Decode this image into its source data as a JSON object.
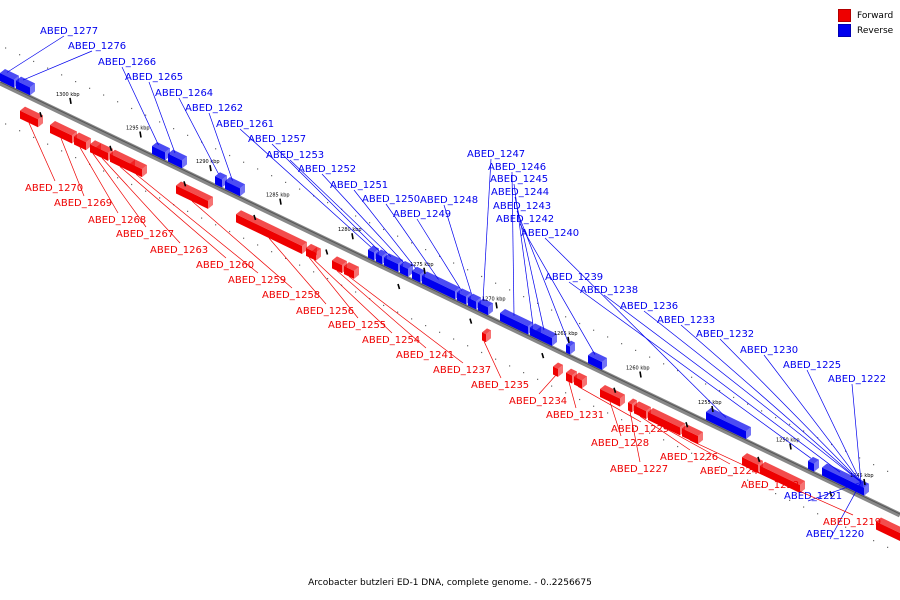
{
  "legend": {
    "forward_label": "Forward",
    "reverse_label": "Reverse",
    "forward_color": "#ee0000",
    "reverse_color": "#0000ee"
  },
  "caption": "Arcobacter butzleri ED-1 DNA, complete genome. - 0..2256675",
  "kbp_marks": [
    "1300 kbp",
    "1295 kbp",
    "1290 kbp",
    "1285 kbp",
    "1280 kbp",
    "1275 kbp",
    "1270 kbp",
    "1265 kbp",
    "1260 kbp",
    "1255 kbp",
    "1250 kbp",
    "1245 kbp"
  ],
  "reverse_genes": [
    "ABED_1277",
    "ABED_1276",
    "ABED_1266",
    "ABED_1265",
    "ABED_1264",
    "ABED_1262",
    "ABED_1261",
    "ABED_1257",
    "ABED_1253",
    "ABED_1252",
    "ABED_1251",
    "ABED_1250",
    "ABED_1249",
    "ABED_1248",
    "ABED_1247",
    "ABED_1246",
    "ABED_1245",
    "ABED_1244",
    "ABED_1243",
    "ABED_1242",
    "ABED_1240",
    "ABED_1239",
    "ABED_1238",
    "ABED_1236",
    "ABED_1233",
    "ABED_1232",
    "ABED_1230",
    "ABED_1225",
    "ABED_1222",
    "ABED_1221",
    "ABED_1220"
  ],
  "forward_genes": [
    "ABED_1270",
    "ABED_1269",
    "ABED_1268",
    "ABED_1267",
    "ABED_1263",
    "ABED_1260",
    "ABED_1259",
    "ABED_1258",
    "ABED_1256",
    "ABED_1255",
    "ABED_1254",
    "ABED_1241",
    "ABED_1237",
    "ABED_1235",
    "ABED_1234",
    "ABED_1231",
    "ABED_1229",
    "ABED_1228",
    "ABED_1227",
    "ABED_1226",
    "ABED_1224",
    "ABED_1223",
    "ABED_1219"
  ]
}
